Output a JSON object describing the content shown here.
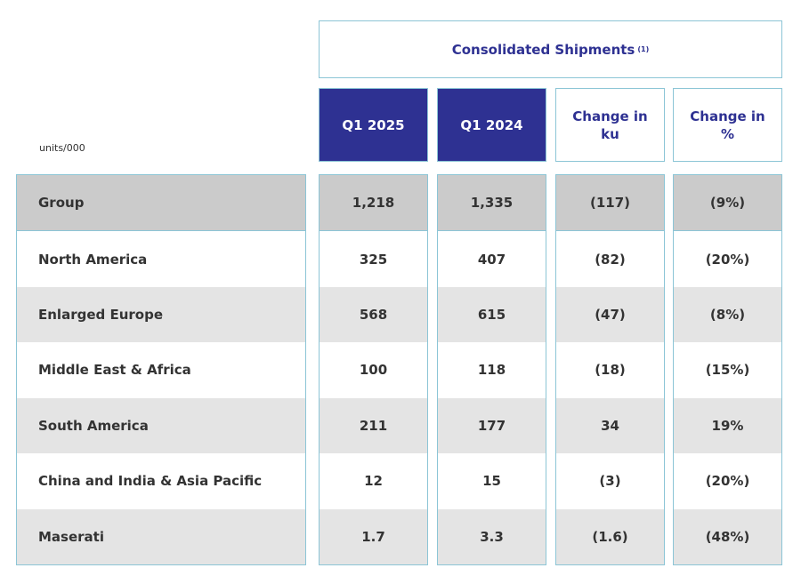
{
  "header": {
    "title": "Consolidated Shipments",
    "footnote": "(1)"
  },
  "units": "units/000",
  "columns": [
    "Q1 2025",
    "Q1 2024",
    "Change in ku",
    "Change in %"
  ],
  "rows": [
    {
      "label": "Group",
      "values": [
        "1,218",
        "1,335",
        "(117)",
        "(9%)"
      ]
    },
    {
      "label": "North America",
      "values": [
        "325",
        "407",
        "(82)",
        "(20%)"
      ]
    },
    {
      "label": "Enlarged Europe",
      "values": [
        "568",
        "615",
        "(47)",
        "(8%)"
      ]
    },
    {
      "label": "Middle East & Africa",
      "values": [
        "100",
        "118",
        "(18)",
        "(15%)"
      ]
    },
    {
      "label": "South America",
      "values": [
        "211",
        "177",
        "34",
        "19%"
      ]
    },
    {
      "label": "China and India & Asia Pacific",
      "values": [
        "12",
        "15",
        "(3)",
        "(20%)"
      ]
    },
    {
      "label": "Maserati",
      "values": [
        "1.7",
        "3.3",
        "(1.6)",
        "(48%)"
      ]
    }
  ],
  "colors": {
    "accent": "#2e3192",
    "border": "#8cc5d6",
    "group_row": "#cbcbcb",
    "alt_row": "#e4e4e4"
  }
}
